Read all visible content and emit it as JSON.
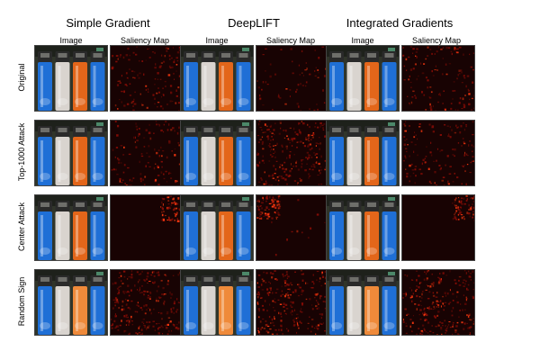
{
  "methods": [
    "Simple Gradient",
    "DeepLIFT",
    "Integrated Gradients"
  ],
  "column_headers": [
    "Image",
    "Saliency Map"
  ],
  "rows": [
    "Original",
    "Top-1000 Attack",
    "Center Attack",
    "Random Sign"
  ],
  "colors": {
    "saliency_background": "#180303",
    "saliency_hot": "#ff3a10",
    "saliency_warm": "#8a0d06",
    "lighter_blue": "#1f6fd6",
    "lighter_white": "#d9d4cf",
    "lighter_orange": "#e3661a",
    "lighter_caps": "#2a2a2a"
  }
}
